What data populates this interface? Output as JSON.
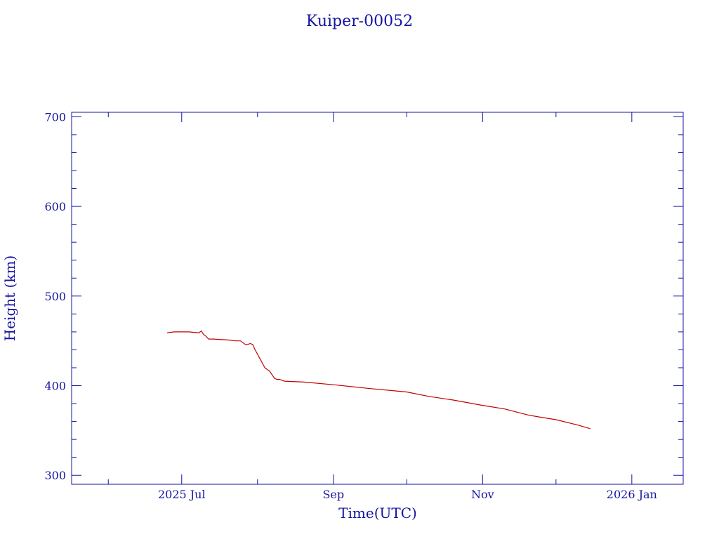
{
  "colors": {
    "axis": "#1414a0",
    "series": "#c00000",
    "background": "#ffffff"
  },
  "chart_data": {
    "type": "line",
    "title": "Kuiper-00052",
    "xlabel": "Time(UTC)",
    "ylabel": "Height (km)",
    "xlim": [
      "2025-05-17",
      "2026-01-22"
    ],
    "ylim": [
      290,
      705
    ],
    "x_ticks": [
      {
        "date": "2025-07-01",
        "label": "2025 Jul"
      },
      {
        "date": "2025-09-01",
        "label": "Sep"
      },
      {
        "date": "2025-11-01",
        "label": "Nov"
      },
      {
        "date": "2026-01-01",
        "label": "2026 Jan"
      }
    ],
    "y_ticks": [
      300,
      400,
      500,
      600,
      700
    ],
    "grid": false,
    "series": [
      {
        "x": [
          "2025-06-25",
          "2025-06-28",
          "2025-07-04",
          "2025-07-08",
          "2025-07-09",
          "2025-07-10",
          "2025-07-11",
          "2025-07-12",
          "2025-07-14",
          "2025-07-20",
          "2025-07-23",
          "2025-07-25",
          "2025-07-27",
          "2025-07-28",
          "2025-07-29",
          "2025-07-30",
          "2025-07-31",
          "2025-08-02",
          "2025-08-04",
          "2025-08-06",
          "2025-08-08",
          "2025-08-09",
          "2025-08-10",
          "2025-08-12",
          "2025-08-20",
          "2025-09-01",
          "2025-09-15",
          "2025-10-01",
          "2025-10-10",
          "2025-10-20",
          "2025-11-01",
          "2025-11-10",
          "2025-11-20",
          "2025-12-01",
          "2025-12-10",
          "2025-12-15"
        ],
        "y": [
          459,
          460,
          460,
          459,
          461,
          457,
          455,
          452,
          452,
          451,
          450,
          450,
          446,
          446,
          447,
          446,
          440,
          430,
          420,
          416,
          408,
          407,
          407,
          405,
          404,
          401,
          397,
          393,
          388,
          384,
          378,
          374,
          367,
          362,
          356,
          352
        ]
      }
    ]
  }
}
